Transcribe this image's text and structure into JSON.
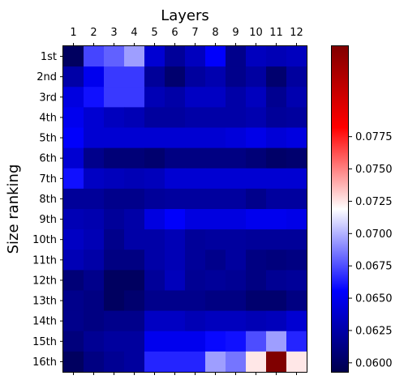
{
  "chart_data": {
    "type": "heatmap",
    "title": "Layers",
    "xlabel": "",
    "ylabel": "Size ranking",
    "x_categories": [
      "1",
      "2",
      "3",
      "4",
      "5",
      "6",
      "7",
      "8",
      "9",
      "10",
      "11",
      "12"
    ],
    "y_categories": [
      "1st",
      "2nd",
      "3rd",
      "4th",
      "5th",
      "6th",
      "7th",
      "8th",
      "9th",
      "10th",
      "11th",
      "12th",
      "13th",
      "14th",
      "15th",
      "16th"
    ],
    "colormap": "seismic",
    "colorbar": {
      "vmin": 0.0593,
      "vmax": 0.0845,
      "tick_values": [
        0.06,
        0.0625,
        0.065,
        0.0675,
        0.07,
        0.0725,
        0.075,
        0.0775
      ],
      "tick_labels": [
        "0.0600",
        "0.0625",
        "0.0650",
        "0.0675",
        "0.0700",
        "0.0725",
        "0.0750",
        "0.0775"
      ]
    },
    "values": [
      [
        0.06,
        0.0673,
        0.068,
        0.0695,
        0.064,
        0.062,
        0.0633,
        0.0655,
        0.0615,
        0.0633,
        0.063,
        0.0633
      ],
      [
        0.0625,
        0.065,
        0.067,
        0.067,
        0.062,
        0.0605,
        0.0622,
        0.0628,
        0.0615,
        0.0623,
        0.0605,
        0.0622
      ],
      [
        0.0645,
        0.066,
        0.067,
        0.067,
        0.063,
        0.0625,
        0.0635,
        0.0635,
        0.0625,
        0.0633,
        0.0617,
        0.0628
      ],
      [
        0.065,
        0.064,
        0.0633,
        0.063,
        0.0622,
        0.0622,
        0.0625,
        0.0625,
        0.0625,
        0.0628,
        0.062,
        0.0622
      ],
      [
        0.0655,
        0.064,
        0.064,
        0.064,
        0.064,
        0.064,
        0.064,
        0.064,
        0.0643,
        0.0648,
        0.0642,
        0.0645
      ],
      [
        0.064,
        0.0615,
        0.0608,
        0.0608,
        0.0605,
        0.0612,
        0.0612,
        0.0612,
        0.0612,
        0.0608,
        0.0603,
        0.0605
      ],
      [
        0.066,
        0.0635,
        0.0632,
        0.063,
        0.0632,
        0.064,
        0.064,
        0.064,
        0.064,
        0.064,
        0.064,
        0.064
      ],
      [
        0.062,
        0.062,
        0.0615,
        0.0615,
        0.062,
        0.0622,
        0.0622,
        0.0622,
        0.0622,
        0.0615,
        0.0622,
        0.0622
      ],
      [
        0.063,
        0.0628,
        0.062,
        0.0625,
        0.0645,
        0.0655,
        0.0645,
        0.0645,
        0.0645,
        0.065,
        0.065,
        0.0648
      ],
      [
        0.0635,
        0.063,
        0.0615,
        0.0625,
        0.0625,
        0.063,
        0.062,
        0.0622,
        0.0622,
        0.062,
        0.062,
        0.062
      ],
      [
        0.063,
        0.0625,
        0.0612,
        0.0612,
        0.0625,
        0.063,
        0.062,
        0.0615,
        0.0622,
        0.0612,
        0.061,
        0.0612
      ],
      [
        0.0608,
        0.0615,
        0.06,
        0.06,
        0.062,
        0.0632,
        0.0618,
        0.062,
        0.0618,
        0.0612,
        0.0618,
        0.062
      ],
      [
        0.0615,
        0.0612,
        0.06,
        0.0605,
        0.0615,
        0.0615,
        0.0615,
        0.0612,
        0.0612,
        0.0605,
        0.0605,
        0.0612
      ],
      [
        0.0615,
        0.0612,
        0.0615,
        0.0615,
        0.0635,
        0.0635,
        0.063,
        0.0633,
        0.0633,
        0.063,
        0.0632,
        0.064
      ],
      [
        0.061,
        0.0618,
        0.0622,
        0.0622,
        0.065,
        0.065,
        0.065,
        0.0658,
        0.066,
        0.0675,
        0.0695,
        0.0665
      ],
      [
        0.06,
        0.0612,
        0.0618,
        0.0622,
        0.0665,
        0.0665,
        0.0665,
        0.0695,
        0.0685,
        0.0725,
        0.0845,
        0.0725
      ]
    ]
  }
}
